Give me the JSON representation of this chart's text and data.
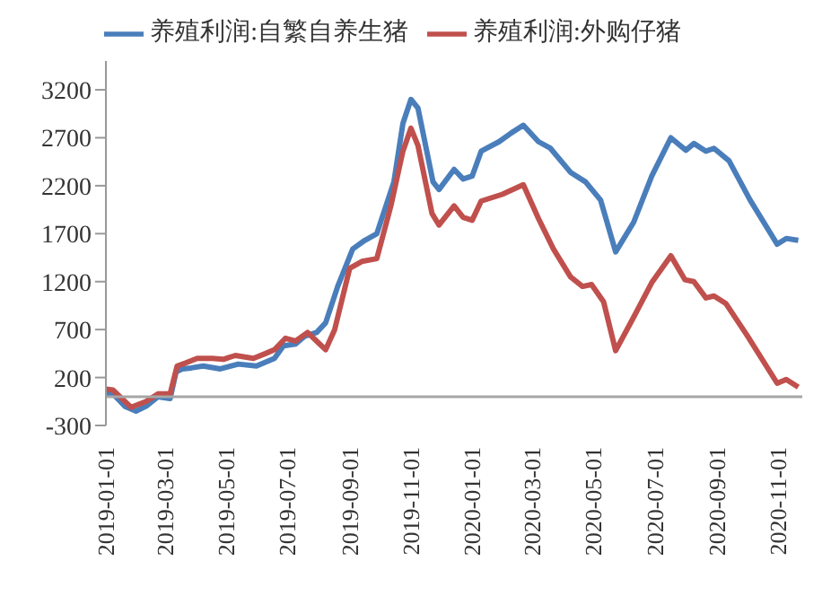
{
  "chart_data": {
    "type": "line",
    "legend": "top",
    "grid": false,
    "marker": "none",
    "line_style": "solid",
    "xlim": [
      "2019-01-01",
      "2020-11-25"
    ],
    "xticks": [
      "2019-01-01",
      "2019-03-01",
      "2019-05-01",
      "2019-07-01",
      "2019-09-01",
      "2019-11-01",
      "2020-01-01",
      "2020-03-01",
      "2020-05-01",
      "2020-07-01",
      "2020-09-01",
      "2020-11-01"
    ],
    "ylim": [
      -300,
      3500
    ],
    "yticks": [
      -300,
      200,
      700,
      1200,
      1700,
      2200,
      2700,
      3200
    ],
    "series": [
      {
        "name": "养殖利润:自繁自养生猪",
        "color": "#4a7ebb",
        "x": [
          "2019-01-01",
          "2019-01-08",
          "2019-01-20",
          "2019-01-31",
          "2019-02-10",
          "2019-02-22",
          "2019-03-06",
          "2019-03-12",
          "2019-03-18",
          "2019-03-27",
          "2019-04-08",
          "2019-04-25",
          "2019-05-13",
          "2019-05-31",
          "2019-06-18",
          "2019-06-27",
          "2019-07-09",
          "2019-07-18",
          "2019-07-30",
          "2019-08-08",
          "2019-08-20",
          "2019-09-04",
          "2019-09-16",
          "2019-09-28",
          "2019-10-15",
          "2019-10-24",
          "2019-11-01",
          "2019-11-08",
          "2019-11-23",
          "2019-11-29",
          "2019-12-14",
          "2019-12-23",
          "2020-01-01",
          "2020-01-10",
          "2020-01-28",
          "2020-02-09",
          "2020-02-21",
          "2020-03-07",
          "2020-03-19",
          "2020-04-08",
          "2020-04-23",
          "2020-05-08",
          "2020-05-23",
          "2020-06-10",
          "2020-06-28",
          "2020-07-17",
          "2020-08-01",
          "2020-08-09",
          "2020-08-21",
          "2020-08-29",
          "2020-09-13",
          "2020-10-04",
          "2020-10-31",
          "2020-11-09",
          "2020-11-21"
        ],
        "values": [
          30,
          30,
          -100,
          -150,
          -100,
          0,
          -20,
          260,
          290,
          300,
          320,
          290,
          340,
          320,
          400,
          530,
          550,
          630,
          670,
          770,
          1150,
          1540,
          1630,
          1700,
          2240,
          2850,
          3100,
          3010,
          2240,
          2160,
          2370,
          2270,
          2300,
          2560,
          2660,
          2750,
          2830,
          2660,
          2590,
          2340,
          2240,
          2050,
          1510,
          1820,
          2300,
          2700,
          2570,
          2640,
          2560,
          2590,
          2460,
          2050,
          1590,
          1650,
          1630
        ]
      },
      {
        "name": "养殖利润:外购仔猪",
        "color": "#c0504d",
        "x": [
          "2019-01-01",
          "2019-01-08",
          "2019-01-26",
          "2019-02-10",
          "2019-02-22",
          "2019-03-06",
          "2019-03-13",
          "2019-03-21",
          "2019-04-02",
          "2019-04-17",
          "2019-04-28",
          "2019-05-10",
          "2019-05-28",
          "2019-06-09",
          "2019-06-18",
          "2019-06-29",
          "2019-07-09",
          "2019-07-21",
          "2019-07-30",
          "2019-08-08",
          "2019-08-17",
          "2019-09-01",
          "2019-09-13",
          "2019-09-28",
          "2019-10-12",
          "2019-10-24",
          "2019-11-01",
          "2019-11-08",
          "2019-11-22",
          "2019-11-29",
          "2019-12-14",
          "2019-12-23",
          "2020-01-01",
          "2020-01-10",
          "2020-01-31",
          "2020-02-21",
          "2020-03-07",
          "2020-03-22",
          "2020-04-08",
          "2020-04-20",
          "2020-04-29",
          "2020-05-11",
          "2020-05-23",
          "2020-06-10",
          "2020-06-28",
          "2020-07-17",
          "2020-07-31",
          "2020-08-09",
          "2020-08-21",
          "2020-08-29",
          "2020-09-10",
          "2020-10-01",
          "2020-10-31",
          "2020-11-09",
          "2020-11-21"
        ],
        "values": [
          80,
          70,
          -110,
          -50,
          30,
          30,
          320,
          350,
          400,
          400,
          390,
          430,
          400,
          450,
          490,
          610,
          580,
          670,
          580,
          490,
          700,
          1340,
          1410,
          1440,
          1990,
          2560,
          2800,
          2620,
          1910,
          1790,
          1990,
          1870,
          1840,
          2040,
          2110,
          2210,
          1860,
          1540,
          1250,
          1150,
          1170,
          990,
          480,
          830,
          1190,
          1470,
          1220,
          1200,
          1030,
          1050,
          970,
          640,
          140,
          180,
          100
        ]
      }
    ]
  }
}
